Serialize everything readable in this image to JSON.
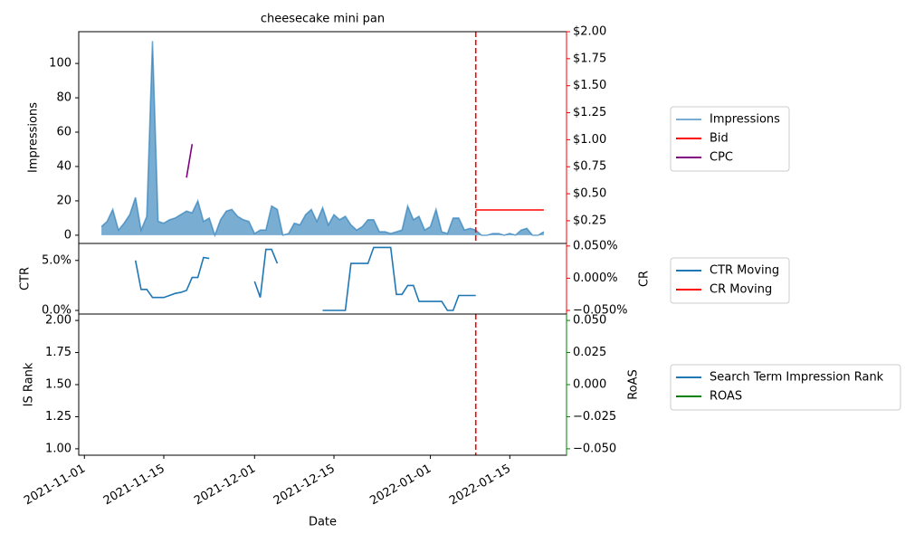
{
  "chart_data": [
    {
      "type": "line",
      "title": "cheesecake mini pan",
      "ylabel": "Impressions",
      "xlim": [
        "2021-10-31",
        "2022-01-25"
      ],
      "x": [
        "2021-11-04",
        "2021-11-05",
        "2021-11-06",
        "2021-11-07",
        "2021-11-08",
        "2021-11-09",
        "2021-11-10",
        "2021-11-11",
        "2021-11-12",
        "2021-11-13",
        "2021-11-14",
        "2021-11-15",
        "2021-11-16",
        "2021-11-17",
        "2021-11-18",
        "2021-11-19",
        "2021-11-20",
        "2021-11-21",
        "2021-11-22",
        "2021-11-23",
        "2021-11-24",
        "2021-11-25",
        "2021-11-26",
        "2021-11-27",
        "2021-11-28",
        "2021-11-29",
        "2021-11-30",
        "2021-12-01",
        "2021-12-02",
        "2021-12-03",
        "2021-12-04",
        "2021-12-05",
        "2021-12-06",
        "2021-12-07",
        "2021-12-08",
        "2021-12-09",
        "2021-12-10",
        "2021-12-11",
        "2021-12-12",
        "2021-12-13",
        "2021-12-14",
        "2021-12-15",
        "2021-12-16",
        "2021-12-17",
        "2021-12-18",
        "2021-12-19",
        "2021-12-20",
        "2021-12-21",
        "2021-12-22",
        "2021-12-23",
        "2021-12-24",
        "2021-12-25",
        "2021-12-26",
        "2021-12-27",
        "2021-12-28",
        "2021-12-29",
        "2021-12-30",
        "2021-12-31",
        "2022-01-01",
        "2022-01-02",
        "2022-01-03",
        "2022-01-04",
        "2022-01-05",
        "2022-01-06",
        "2022-01-07",
        "2022-01-08",
        "2022-01-09",
        "2022-01-10",
        "2022-01-11",
        "2022-01-12",
        "2022-01-13",
        "2022-01-14",
        "2022-01-15",
        "2022-01-16",
        "2022-01-17",
        "2022-01-18",
        "2022-01-19",
        "2022-01-20",
        "2022-01-21"
      ],
      "ylim": [
        -4.8,
        118.5
      ],
      "yticks": [
        0,
        20,
        40,
        60,
        80,
        100
      ],
      "ytick_color": "blue",
      "y2lim": [
        0.04,
        2.0
      ],
      "y2ticks": [
        {
          "value": 0.25,
          "label": "$0.25"
        },
        {
          "value": 0.5,
          "label": "$0.50"
        },
        {
          "value": 0.75,
          "label": "$0.75"
        },
        {
          "value": 1.0,
          "label": "$1.00"
        },
        {
          "value": 1.25,
          "label": "$1.25"
        },
        {
          "value": 1.5,
          "label": "$1.50"
        },
        {
          "value": 1.75,
          "label": "$1.75"
        },
        {
          "value": 2.0,
          "label": "$2.00"
        }
      ],
      "y2tick_color": "red",
      "vline": "2022-01-09",
      "vline_color": "red",
      "series": [
        {
          "name": "Impressions",
          "color": "#1f77b4",
          "opacity": 0.6,
          "area": true,
          "values": [
            5,
            8,
            15,
            3,
            7,
            12,
            22,
            3,
            11,
            113,
            8,
            7,
            9,
            10,
            12,
            14,
            13,
            20,
            8,
            10,
            0,
            9,
            14,
            15,
            11,
            9,
            8,
            1,
            3,
            3,
            17,
            15,
            0,
            1,
            7,
            6,
            12,
            15,
            8,
            16,
            6,
            12,
            9,
            11,
            6,
            3,
            5,
            9,
            9,
            2,
            2,
            1,
            2,
            3,
            17,
            9,
            11,
            3,
            5,
            15,
            2,
            1,
            10,
            10,
            3,
            4,
            3,
            0,
            0,
            1,
            1,
            0,
            1,
            0,
            3,
            4,
            0,
            0,
            2
          ]
        },
        {
          "name": "Bid",
          "color": "red",
          "axis": "y2",
          "values": [
            null,
            null,
            null,
            null,
            null,
            null,
            null,
            null,
            null,
            null,
            null,
            null,
            null,
            null,
            null,
            null,
            null,
            null,
            null,
            null,
            null,
            null,
            null,
            null,
            null,
            null,
            null,
            null,
            null,
            null,
            null,
            null,
            null,
            null,
            null,
            null,
            null,
            null,
            null,
            null,
            null,
            null,
            null,
            null,
            null,
            null,
            null,
            null,
            null,
            null,
            null,
            null,
            null,
            null,
            null,
            null,
            null,
            null,
            null,
            null,
            null,
            null,
            null,
            null,
            null,
            null,
            0.35,
            0.35,
            0.35,
            0.35,
            0.35,
            0.35,
            0.35,
            0.35,
            0.35,
            0.35,
            0.35,
            0.35,
            0.35
          ]
        },
        {
          "name": "CPC",
          "color": "purple",
          "axis": "y2",
          "values": [
            null,
            null,
            null,
            null,
            null,
            null,
            null,
            null,
            null,
            null,
            null,
            null,
            null,
            null,
            null,
            0.65,
            0.96,
            null,
            null,
            null,
            null,
            null,
            null,
            null,
            null,
            null,
            null,
            null,
            null,
            null,
            null,
            null,
            null,
            null,
            null,
            null,
            null,
            null,
            null,
            null,
            null,
            null,
            null,
            null,
            null,
            null,
            null,
            null,
            null,
            null,
            null,
            null,
            null,
            null,
            null,
            null,
            null,
            null,
            null,
            null,
            null,
            null,
            null,
            null,
            null,
            null,
            null,
            null,
            null,
            null,
            null,
            null,
            null,
            null,
            null,
            null,
            null,
            null,
            null
          ]
        }
      ]
    },
    {
      "type": "line",
      "ylabel": "CTR",
      "y2label": "CR",
      "xlim": [
        "2021-10-31",
        "2022-01-25"
      ],
      "x": [
        "2021-11-04",
        "2021-11-05",
        "2021-11-06",
        "2021-11-07",
        "2021-11-08",
        "2021-11-09",
        "2021-11-10",
        "2021-11-11",
        "2021-11-12",
        "2021-11-13",
        "2021-11-14",
        "2021-11-15",
        "2021-11-16",
        "2021-11-17",
        "2021-11-18",
        "2021-11-19",
        "2021-11-20",
        "2021-11-21",
        "2021-11-22",
        "2021-11-23",
        "2021-11-24",
        "2021-11-25",
        "2021-11-26",
        "2021-11-27",
        "2021-11-28",
        "2021-11-29",
        "2021-11-30",
        "2021-12-01",
        "2021-12-02",
        "2021-12-03",
        "2021-12-04",
        "2021-12-05",
        "2021-12-06",
        "2021-12-07",
        "2021-12-08",
        "2021-12-09",
        "2021-12-10",
        "2021-12-11",
        "2021-12-12",
        "2021-12-13",
        "2021-12-14",
        "2021-12-15",
        "2021-12-16",
        "2021-12-17",
        "2021-12-18",
        "2021-12-19",
        "2021-12-20",
        "2021-12-21",
        "2021-12-22",
        "2021-12-23",
        "2021-12-24",
        "2021-12-25",
        "2021-12-26",
        "2021-12-27",
        "2021-12-28",
        "2021-12-29",
        "2021-12-30",
        "2021-12-31",
        "2022-01-01",
        "2022-01-02",
        "2022-01-03",
        "2022-01-04",
        "2022-01-05",
        "2022-01-06",
        "2022-01-07",
        "2022-01-08",
        "2022-01-09",
        "2022-01-10",
        "2022-01-11",
        "2022-01-12",
        "2022-01-13",
        "2022-01-14",
        "2022-01-15",
        "2022-01-16",
        "2022-01-17",
        "2022-01-18",
        "2022-01-19",
        "2022-01-20",
        "2022-01-21"
      ],
      "ylim": [
        -0.36,
        6.7
      ],
      "yticks": [
        {
          "value": 0,
          "label": "0.0%"
        },
        {
          "value": 5,
          "label": "5.0%"
        }
      ],
      "ytick_color": "black",
      "y2lim": [
        -0.0556,
        0.054
      ],
      "y2ticks": [
        {
          "value": -0.05,
          "label": "−0.050%"
        },
        {
          "value": 0,
          "label": "0.000%"
        },
        {
          "value": 0.05,
          "label": "0.050%"
        }
      ],
      "y2tick_color": "red",
      "series": [
        {
          "name": "CTR Moving",
          "color": "#1f77b4",
          "values": [
            null,
            null,
            null,
            null,
            null,
            null,
            5.0,
            2.1,
            2.1,
            1.3,
            1.3,
            1.3,
            1.5,
            1.7,
            1.8,
            2.0,
            3.3,
            3.3,
            5.3,
            5.2,
            null,
            null,
            null,
            null,
            null,
            null,
            null,
            2.9,
            1.3,
            6.1,
            6.1,
            4.7,
            null,
            null,
            null,
            null,
            null,
            null,
            null,
            0,
            0,
            0,
            0,
            0,
            4.7,
            4.7,
            4.7,
            4.7,
            6.3,
            6.3,
            6.3,
            6.3,
            1.6,
            1.6,
            2.5,
            2.5,
            0.9,
            0.9,
            0.9,
            0.9,
            0.9,
            0,
            0,
            1.5,
            1.5,
            1.5,
            1.5,
            null,
            null,
            null,
            null,
            null,
            null,
            null,
            null,
            null,
            null,
            null,
            null
          ]
        },
        {
          "name": "CR Moving",
          "color": "red",
          "axis": "y2",
          "values": [
            null,
            null,
            null,
            null,
            null,
            null,
            null,
            null,
            null,
            null,
            null,
            null,
            null,
            null,
            null,
            null,
            null,
            null,
            null,
            null,
            null,
            null,
            null,
            null,
            null,
            null,
            null,
            null,
            null,
            null,
            null,
            null,
            null,
            null,
            null,
            null,
            null,
            null,
            null,
            null,
            null,
            null,
            null,
            null,
            null,
            null,
            null,
            null,
            null,
            null,
            null,
            null,
            null,
            null,
            null,
            null,
            null,
            null,
            null,
            null,
            null,
            null,
            null,
            null,
            null,
            null,
            null,
            null,
            null,
            null,
            null,
            null,
            null,
            null,
            null,
            null,
            null,
            null,
            null
          ]
        }
      ]
    },
    {
      "type": "line",
      "ylabel": "IS Rank",
      "y2label": "RoAS",
      "xlabel": "Date",
      "xlim": [
        "2021-10-31",
        "2022-01-25"
      ],
      "xticks": [
        "2021-11-01",
        "2021-11-15",
        "2021-12-01",
        "2021-12-15",
        "2022-01-01",
        "2022-01-15"
      ],
      "x": [
        "2021-11-04",
        "2021-11-05",
        "2021-11-06",
        "2021-11-07",
        "2021-11-08",
        "2021-11-09",
        "2021-11-10",
        "2021-11-11",
        "2021-11-12",
        "2021-11-13",
        "2021-11-14",
        "2021-11-15",
        "2021-11-16",
        "2021-11-17",
        "2021-11-18",
        "2021-11-19",
        "2021-11-20",
        "2021-11-21",
        "2021-11-22",
        "2021-11-23",
        "2021-11-24",
        "2021-11-25",
        "2021-11-26",
        "2021-11-27",
        "2021-11-28",
        "2021-11-29",
        "2021-11-30",
        "2021-12-01",
        "2021-12-02",
        "2021-12-03",
        "2021-12-04",
        "2021-12-05",
        "2021-12-06",
        "2021-12-07",
        "2021-12-08",
        "2021-12-09",
        "2021-12-10",
        "2021-12-11",
        "2021-12-12",
        "2021-12-13",
        "2021-12-14",
        "2021-12-15",
        "2021-12-16",
        "2021-12-17",
        "2021-12-18",
        "2021-12-19",
        "2021-12-20",
        "2021-12-21",
        "2021-12-22",
        "2021-12-23",
        "2021-12-24",
        "2021-12-25",
        "2021-12-26",
        "2021-12-27",
        "2021-12-28",
        "2021-12-29",
        "2021-12-30",
        "2021-12-31",
        "2022-01-01",
        "2022-01-02",
        "2022-01-03",
        "2022-01-04",
        "2022-01-05",
        "2022-01-06",
        "2022-01-07",
        "2022-01-08",
        "2022-01-09",
        "2022-01-10",
        "2022-01-11",
        "2022-01-12",
        "2022-01-13",
        "2022-01-14",
        "2022-01-15",
        "2022-01-16",
        "2022-01-17",
        "2022-01-18",
        "2022-01-19",
        "2022-01-20",
        "2022-01-21"
      ],
      "ylim": [
        0.95,
        2.05
      ],
      "yticks": [
        {
          "value": 1,
          "label": "1.00"
        },
        1.25,
        {
          "value": 1.5,
          "label": "1.50"
        },
        1.75,
        {
          "value": 2,
          "label": "2.00"
        }
      ],
      "ytick_color": "blue",
      "y2lim": [
        -0.055,
        0.055
      ],
      "y2ticks": [
        {
          "value": -0.05,
          "label": "−0.050"
        },
        {
          "value": -0.025,
          "label": "−0.025"
        },
        {
          "value": 0,
          "label": "0.000"
        },
        0.025,
        {
          "value": 0.05,
          "label": "0.050"
        }
      ],
      "y2tick_color": "green",
      "vline": "2022-01-09",
      "vline_color": "red",
      "series": [
        {
          "name": "Search Term Impression Rank",
          "color": "#1f77b4",
          "values": [
            null,
            null,
            null,
            null,
            null,
            null,
            null,
            null,
            null,
            null,
            null,
            null,
            null,
            null,
            null,
            null,
            null,
            null,
            null,
            null,
            null,
            null,
            null,
            null,
            null,
            null,
            null,
            null,
            null,
            null,
            null,
            null,
            null,
            null,
            null,
            null,
            null,
            null,
            null,
            null,
            null,
            null,
            null,
            null,
            null,
            null,
            null,
            null,
            null,
            null,
            null,
            null,
            null,
            null,
            null,
            null,
            null,
            null,
            null,
            null,
            null,
            null,
            null,
            null,
            null,
            null,
            null,
            null,
            null,
            null,
            null,
            null,
            null,
            null,
            null,
            null,
            null,
            null,
            null
          ]
        },
        {
          "name": "ROAS",
          "color": "green",
          "axis": "y2",
          "values": [
            null,
            null,
            null,
            null,
            null,
            null,
            null,
            null,
            null,
            null,
            null,
            null,
            null,
            null,
            null,
            null,
            null,
            null,
            null,
            null,
            null,
            null,
            null,
            null,
            null,
            null,
            null,
            null,
            null,
            null,
            null,
            null,
            null,
            null,
            null,
            null,
            null,
            null,
            null,
            null,
            null,
            null,
            null,
            null,
            null,
            null,
            null,
            null,
            null,
            null,
            null,
            null,
            null,
            null,
            null,
            null,
            null,
            null,
            null,
            null,
            null,
            null,
            null,
            null,
            null,
            null,
            null,
            null,
            null,
            null,
            null,
            null,
            null,
            null,
            null,
            null,
            null,
            null,
            null
          ]
        }
      ]
    }
  ]
}
